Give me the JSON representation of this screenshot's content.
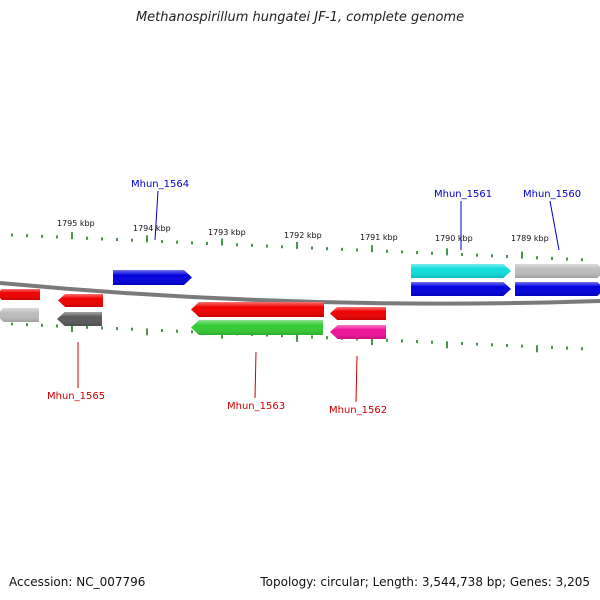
{
  "title": "Methanospirillum hungatei JF-1, complete genome",
  "footer": {
    "accession": "Accession: NC_007796",
    "summary": "Topology: circular; Length: 3,544,738 bp; Genes: 3,205"
  },
  "colors": {
    "tick": "#1a7a1a",
    "backbone": "#7a7a7a",
    "label_top": "#0000cc",
    "label_bottom": "#cc0000"
  },
  "kbp_labels": [
    "1795 kbp",
    "1794 kbp",
    "1793 kbp",
    "1792 kbp",
    "1791 kbp",
    "1790 kbp",
    "1789 kbp"
  ],
  "genes": [
    {
      "id": "g-red-left-edge",
      "color": "#ee0000",
      "strand": "reverse"
    },
    {
      "id": "g-gray-left-edge",
      "color": "#bdbdbd",
      "strand": "reverse"
    },
    {
      "id": "g-red-1565",
      "color": "#ee0000",
      "strand": "reverse"
    },
    {
      "id": "g-darkgray",
      "color": "#5a5a5a",
      "strand": "reverse"
    },
    {
      "id": "g-blue-1564",
      "color": "#0000dd",
      "strand": "forward"
    },
    {
      "id": "g-red-1563",
      "color": "#ee0000",
      "strand": "reverse"
    },
    {
      "id": "g-green",
      "color": "#33cc33",
      "strand": "reverse"
    },
    {
      "id": "g-red-1562",
      "color": "#ee0000",
      "strand": "reverse"
    },
    {
      "id": "g-magenta",
      "color": "#ee1199",
      "strand": "reverse"
    },
    {
      "id": "g-cyan",
      "color": "#11dddd",
      "strand": "forward"
    },
    {
      "id": "g-blue-1561",
      "color": "#0000dd",
      "strand": "forward"
    },
    {
      "id": "g-gray-1560",
      "color": "#bdbdbd",
      "strand": "forward"
    },
    {
      "id": "g-blue-1560",
      "color": "#0000dd",
      "strand": "forward"
    }
  ],
  "gene_labels": [
    {
      "text": "Mhun_1564",
      "color": "#0000cc"
    },
    {
      "text": "Mhun_1561",
      "color": "#0000cc"
    },
    {
      "text": "Mhun_1560",
      "color": "#0000cc"
    },
    {
      "text": "Mhun_1565",
      "color": "#cc0000"
    },
    {
      "text": "Mhun_1563",
      "color": "#cc0000"
    },
    {
      "text": "Mhun_1562",
      "color": "#cc0000"
    }
  ]
}
